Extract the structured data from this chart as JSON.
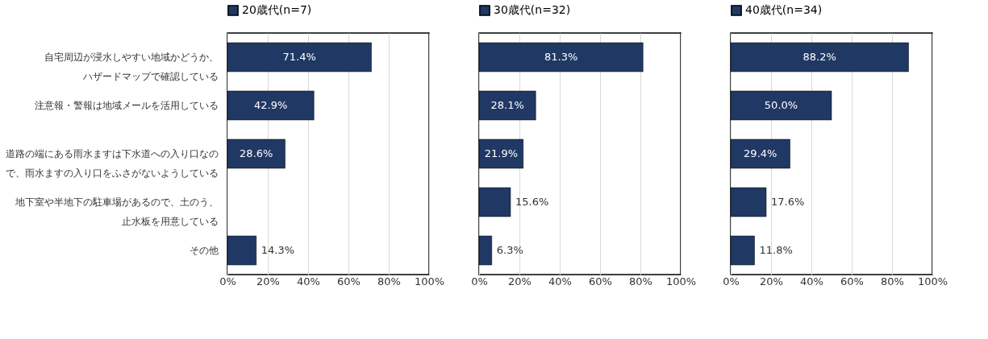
{
  "chart_data": [
    {
      "type": "bar",
      "orientation": "horizontal",
      "categories": [
        "自宅周辺が浸水しやすい地域かどうか、ハザードマップで確認している",
        "注意報・警報は地域メールを活用している",
        "道路の端にある雨水ますは下水道への入り口なので、雨水ますの入り口をふさがないようしている",
        "地下室や半地下の駐車場があるので、土のう、止水板を用意している",
        "その他"
      ],
      "series": [
        {
          "name": "20歳代(n=7)",
          "color": "#203864",
          "values": [
            71.4,
            42.9,
            28.6,
            null,
            14.3
          ],
          "value_labels": [
            "71.4%",
            "42.9%",
            "28.6%",
            null,
            "14.3%"
          ]
        }
      ],
      "xlim": [
        0,
        100
      ],
      "xticks": [
        {
          "value": 0,
          "label": "0%"
        },
        {
          "value": 20,
          "label": "20%"
        },
        {
          "value": 40,
          "label": "40%"
        },
        {
          "value": 60,
          "label": "60%"
        },
        {
          "value": 80,
          "label": "80%"
        },
        {
          "value": 100,
          "label": "100%"
        }
      ],
      "grid": "x",
      "legend": "top"
    },
    {
      "type": "bar",
      "orientation": "horizontal",
      "categories": [
        "自宅周辺が浸水しやすい地域かどうか、ハザードマップで確認している",
        "注意報・警報は地域メールを活用している",
        "道路の端にある雨水ますは下水道への入り口なので、雨水ますの入り口をふさがないようしている",
        "地下室や半地下の駐車場があるので、土のう、止水板を用意している",
        "その他"
      ],
      "series": [
        {
          "name": "30歳代(n=32)",
          "color": "#203864",
          "values": [
            81.3,
            28.1,
            21.9,
            15.6,
            6.3
          ],
          "value_labels": [
            "81.3%",
            "28.1%",
            "21.9%",
            "15.6%",
            "6.3%"
          ]
        }
      ],
      "xlim": [
        0,
        100
      ],
      "xticks": [
        {
          "value": 0,
          "label": "0%"
        },
        {
          "value": 20,
          "label": "20%"
        },
        {
          "value": 40,
          "label": "40%"
        },
        {
          "value": 60,
          "label": "60%"
        },
        {
          "value": 80,
          "label": "80%"
        },
        {
          "value": 100,
          "label": "100%"
        }
      ],
      "grid": "x",
      "legend": "top",
      "tick_labels": "x"
    },
    {
      "type": "bar",
      "orientation": "horizontal",
      "categories": [
        "自宅周辺が浸水しやすい地域かどうか、ハザードマップで確認している",
        "注意報・警報は地域メールを活用している",
        "道路の端にある雨水ますは下水道への入り口なので、雨水ますの入り口をふさがないようしている",
        "地下室や半地下の駐車場があるので、土のう、止水板を用意している",
        "その他"
      ],
      "series": [
        {
          "name": "40歳代(n=34)",
          "color": "#203864",
          "values": [
            88.2,
            50.0,
            29.4,
            17.6,
            11.8
          ],
          "value_labels": [
            "88.2%",
            "50.0%",
            "29.4%",
            "17.6%",
            "11.8%"
          ]
        }
      ],
      "xlim": [
        0,
        100
      ],
      "xticks": [
        {
          "value": 0,
          "label": "0%"
        },
        {
          "value": 20,
          "label": "20%"
        },
        {
          "value": 40,
          "label": "40%"
        },
        {
          "value": 60,
          "label": "60%"
        },
        {
          "value": 80,
          "label": "80%"
        },
        {
          "value": 100,
          "label": "100%"
        }
      ],
      "grid": "x",
      "legend": "top",
      "tick_labels": "x"
    }
  ]
}
